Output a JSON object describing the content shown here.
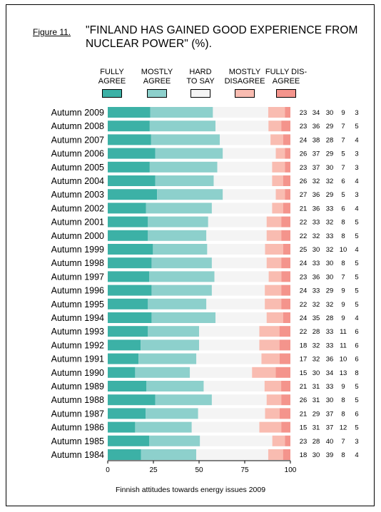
{
  "figure_label": "Figure 11.",
  "footer": "Finnish attitudes towards energy issues 2009",
  "colors": {
    "fully_agree": "#3cb1a6",
    "mostly_agree": "#8dd0cc",
    "hard_to_say": "#f4f4f4",
    "mostly_disagree": "#f9bcb1",
    "fully_disagree": "#f4948c"
  },
  "chart_data": {
    "type": "bar",
    "orientation": "horizontal",
    "stacked": true,
    "title": "\"FINLAND HAS GAINED GOOD EXPERIENCE FROM\nNUCLEAR POWER\" (%).",
    "xlabel": "",
    "ylabel": "",
    "xlim": [
      0,
      100
    ],
    "xticks": [
      0,
      25,
      50,
      75,
      100
    ],
    "legend_position": "top",
    "categories": [
      "Autumn 2009",
      "Autumn 2008",
      "Autumn 2007",
      "Autumn 2006",
      "Autumn 2005",
      "Autumn 2004",
      "Autumn 2003",
      "Autumn 2002",
      "Autumn 2001",
      "Autumn 2000",
      "Autumn 1999",
      "Autumn 1998",
      "Autumn 1997",
      "Autumn 1996",
      "Autumn 1995",
      "Autumn 1994",
      "Autumn 1993",
      "Autumn 1992",
      "Autumn 1991",
      "Autumn 1990",
      "Autumn 1989",
      "Autumn 1988",
      "Autumn 1987",
      "Autumn 1986",
      "Autumn 1985",
      "Autumn 1984"
    ],
    "series": [
      {
        "name": "FULLY\nAGREE",
        "values": [
          23,
          23,
          24,
          26,
          23,
          26,
          27,
          21,
          22,
          22,
          25,
          24,
          23,
          24,
          22,
          24,
          22,
          18,
          17,
          15,
          21,
          26,
          21,
          15,
          23,
          18
        ]
      },
      {
        "name": "MOSTLY\nAGREE",
        "values": [
          34,
          36,
          38,
          37,
          37,
          32,
          36,
          36,
          33,
          32,
          30,
          33,
          36,
          33,
          32,
          35,
          28,
          32,
          32,
          30,
          31,
          31,
          29,
          31,
          28,
          30
        ]
      },
      {
        "name": "HARD\nTO SAY",
        "values": [
          30,
          29,
          28,
          29,
          30,
          32,
          29,
          33,
          32,
          33,
          32,
          30,
          30,
          29,
          32,
          28,
          33,
          33,
          36,
          34,
          33,
          30,
          37,
          37,
          40,
          39
        ]
      },
      {
        "name": "MOSTLY\nDISAGREE",
        "values": [
          9,
          7,
          7,
          5,
          7,
          6,
          5,
          6,
          8,
          8,
          10,
          8,
          7,
          9,
          9,
          9,
          11,
          11,
          10,
          13,
          9,
          8,
          8,
          12,
          7,
          8
        ]
      },
      {
        "name": "FULLY DIS-\nAGREE",
        "values": [
          3,
          5,
          4,
          3,
          3,
          4,
          3,
          4,
          5,
          5,
          4,
          5,
          5,
          5,
          5,
          4,
          6,
          6,
          6,
          8,
          5,
          5,
          6,
          5,
          3,
          4
        ]
      }
    ]
  }
}
